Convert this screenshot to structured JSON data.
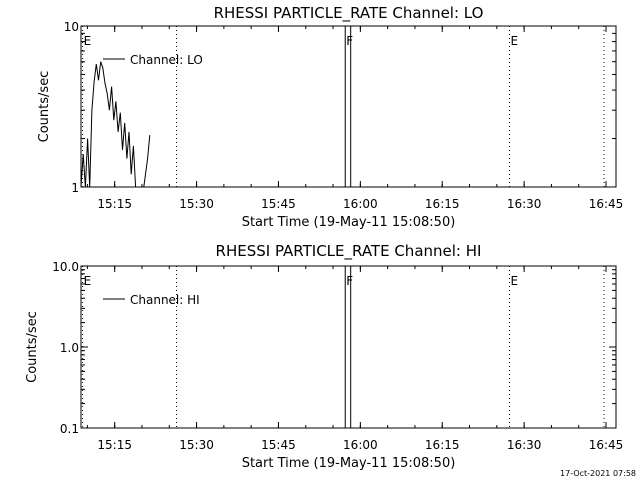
{
  "footer": {
    "timestamp": "17-Oct-2021 07:58"
  },
  "chart_data": [
    {
      "type": "line",
      "title": "RHESSI PARTICLE_RATE Channel: LO",
      "xlabel": "Start Time (19-May-11 15:08:50)",
      "ylabel": "Counts/sec",
      "xlim_minutes": [
        0,
        98
      ],
      "ylim": [
        1,
        10
      ],
      "yscale": "log",
      "xtick_minutes": [
        6.17,
        21.17,
        36.17,
        51.17,
        66.17,
        81.17,
        96.17
      ],
      "xtick_labels": [
        "15:15",
        "15:30",
        "15:45",
        "16:00",
        "16:15",
        "16:30",
        "16:45"
      ],
      "ytick_values": [
        1,
        10
      ],
      "ytick_labels": [
        "1",
        "10"
      ],
      "vlines": [
        {
          "minute": 0.3,
          "label": "E",
          "style": "dotted"
        },
        {
          "minute": 17.5,
          "label": "",
          "style": "dotted"
        },
        {
          "minute": 48.4,
          "label": "F",
          "style": "solid"
        },
        {
          "minute": 49.4,
          "label": "",
          "style": "solid"
        },
        {
          "minute": 78.5,
          "label": "E",
          "style": "dotted"
        },
        {
          "minute": 95.8,
          "label": "",
          "style": "dotted"
        }
      ],
      "legend": {
        "position": "top-left",
        "entries": [
          "Channel: LO"
        ]
      },
      "series": [
        {
          "name": "Channel: LO",
          "x_minutes": [
            0.0,
            0.4,
            0.8,
            1.2,
            1.6,
            2.0,
            2.4,
            2.8,
            3.2,
            3.6,
            4.0,
            4.4,
            4.8,
            5.2,
            5.6,
            6.0,
            6.4,
            6.8,
            7.2,
            7.6,
            8.0,
            8.4,
            8.8,
            9.2,
            9.6,
            10.0,
            10.3,
            11.5,
            12.2,
            12.6
          ],
          "values": [
            1.0,
            1.6,
            1.0,
            2.0,
            1.0,
            3.0,
            4.5,
            5.8,
            4.6,
            6.0,
            5.5,
            4.4,
            3.8,
            3.0,
            4.2,
            2.6,
            3.4,
            2.2,
            2.9,
            1.7,
            2.5,
            1.5,
            2.2,
            1.2,
            1.8,
            1.0,
            1.0,
            1.0,
            1.5,
            2.1
          ]
        }
      ]
    },
    {
      "type": "line",
      "title": "RHESSI PARTICLE_RATE Channel: HI",
      "xlabel": "Start Time (19-May-11 15:08:50)",
      "ylabel": "Counts/sec",
      "xlim_minutes": [
        0,
        98
      ],
      "ylim": [
        0.1,
        10
      ],
      "yscale": "log",
      "xtick_minutes": [
        6.17,
        21.17,
        36.17,
        51.17,
        66.17,
        81.17,
        96.17
      ],
      "xtick_labels": [
        "15:15",
        "15:30",
        "15:45",
        "16:00",
        "16:15",
        "16:30",
        "16:45"
      ],
      "ytick_values": [
        0.1,
        1,
        10
      ],
      "ytick_labels": [
        "0.1",
        "1.0",
        "10.0"
      ],
      "vlines": [
        {
          "minute": 0.3,
          "label": "E",
          "style": "dotted"
        },
        {
          "minute": 17.5,
          "label": "",
          "style": "dotted"
        },
        {
          "minute": 48.4,
          "label": "F",
          "style": "solid"
        },
        {
          "minute": 49.4,
          "label": "",
          "style": "solid"
        },
        {
          "minute": 78.5,
          "label": "E",
          "style": "dotted"
        },
        {
          "minute": 95.8,
          "label": "",
          "style": "dotted"
        }
      ],
      "legend": {
        "position": "top-left",
        "entries": [
          "Channel: HI"
        ]
      },
      "series": [
        {
          "name": "Channel: HI",
          "x_minutes": [],
          "values": []
        }
      ]
    }
  ]
}
